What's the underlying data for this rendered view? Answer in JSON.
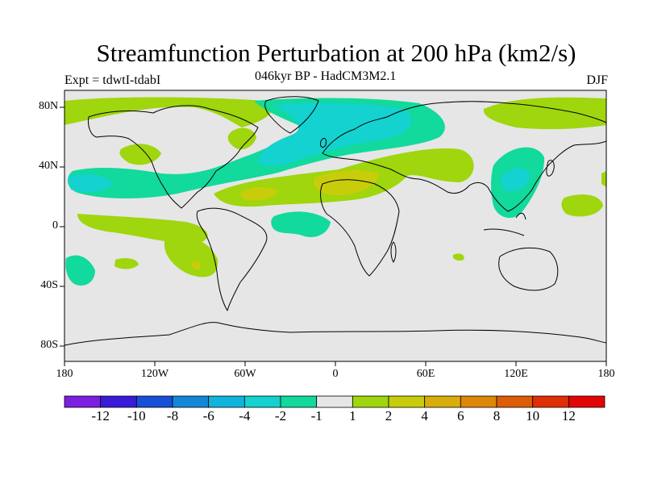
{
  "header": {
    "title": "Streamfunction Perturbation at 200 hPa (km2/s)",
    "experiment": "Expt = tdwtI-tdabI",
    "subtitle": "046kyr BP - HadCM3M2.1",
    "season": "DJF"
  },
  "chart_data": {
    "type": "heatmap",
    "title": "Streamfunction Perturbation at 200 hPa (km2/s)",
    "subtitle": "046kyr BP - HadCM3M2.1",
    "variable": "streamfunction perturbation",
    "units": "km2/s",
    "level": "200 hPa",
    "season": "DJF",
    "x_range": [
      -180,
      180
    ],
    "y_range": [
      -90,
      90
    ],
    "x_ticks": [
      "180",
      "120W",
      "60W",
      "0",
      "60E",
      "120E",
      "180"
    ],
    "y_ticks": [
      "80N",
      "40N",
      "0",
      "40S",
      "80S"
    ],
    "colorbar": {
      "tick_labels": [
        "-12",
        "-10",
        "-8",
        "-6",
        "-4",
        "-2",
        "-1",
        "1",
        "2",
        "4",
        "6",
        "8",
        "10",
        "12"
      ],
      "colors": [
        "#7b1fe0",
        "#3a1ad8",
        "#1550d6",
        "#1287d8",
        "#10b3dc",
        "#13d2cf",
        "#12d99c",
        "#e6e6e6",
        "#9fd60d",
        "#c8cd0b",
        "#d9ad09",
        "#dc8707",
        "#dd5c06",
        "#e02f05",
        "#e10505"
      ]
    }
  }
}
